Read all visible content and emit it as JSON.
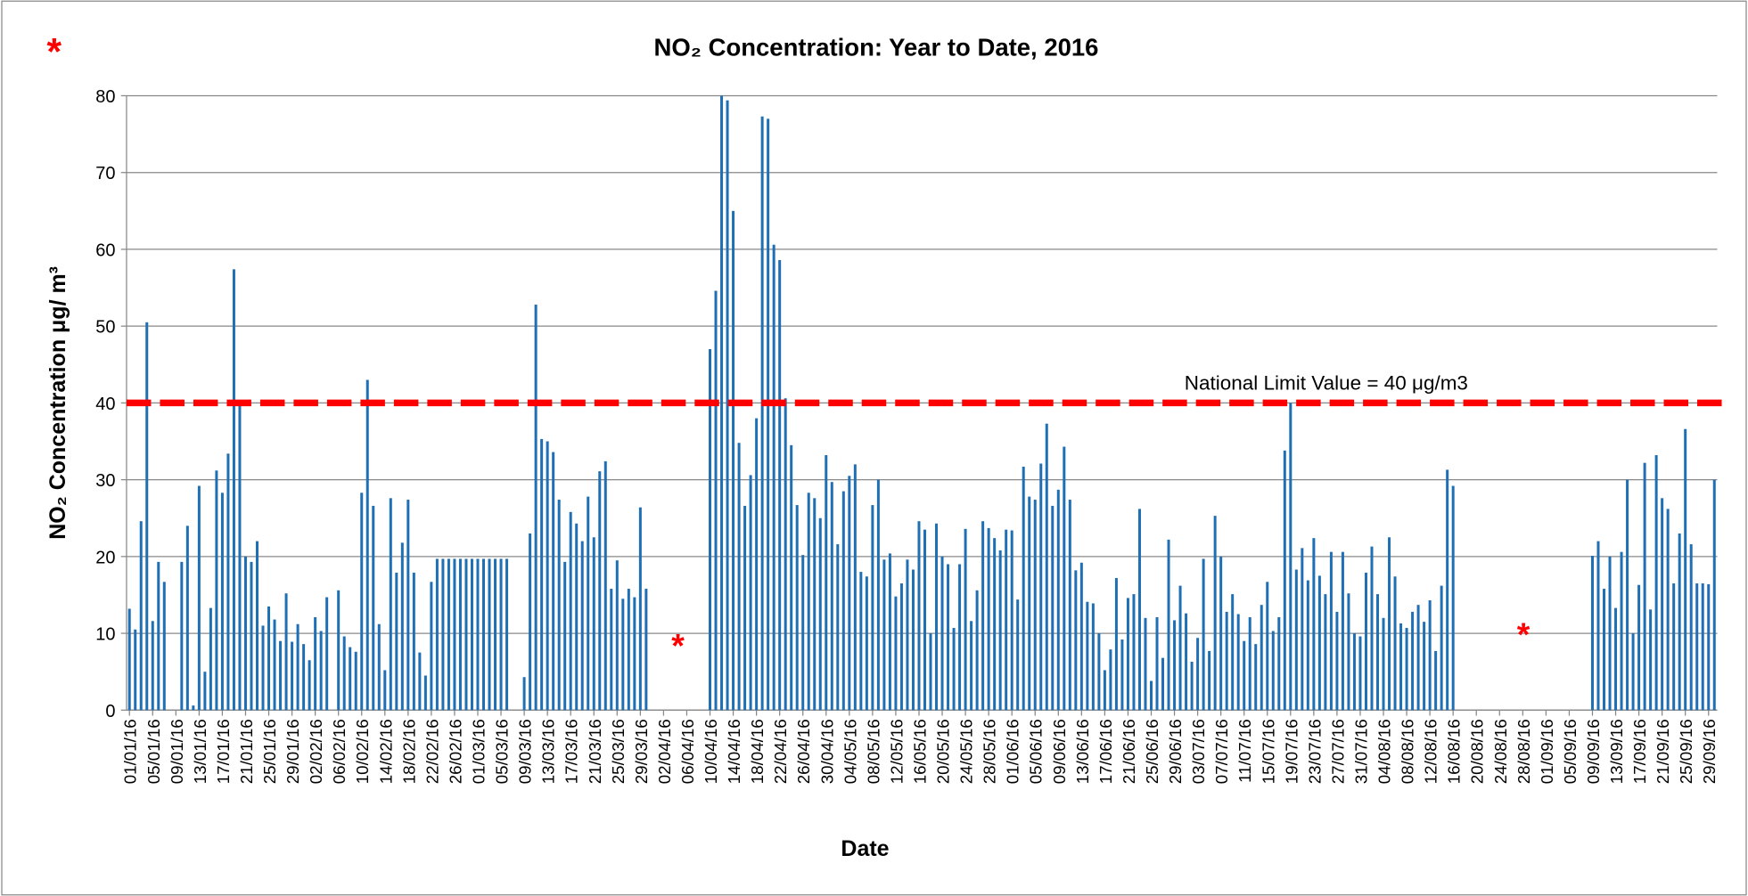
{
  "chart_data": {
    "type": "bar",
    "title": "NO₂ Concentration: Year to Date, 2016",
    "y_label": "NO₂ Concentration μg/ m³",
    "x_label": "Date",
    "color": "#1f6fb5",
    "grid": true,
    "ylim": [
      0,
      80
    ],
    "yticks": [
      0,
      10,
      20,
      30,
      40,
      50,
      60,
      70,
      80
    ],
    "reference_line": {
      "value": 40,
      "label": "National Limit Value = 40 μg/m3",
      "color": "#ff0000"
    },
    "annotations": [
      "*",
      "*",
      "*"
    ],
    "categories": [
      "01/01/16",
      null,
      null,
      null,
      "05/01/16",
      null,
      null,
      null,
      "09/01/16",
      null,
      null,
      null,
      "13/01/16",
      null,
      null,
      null,
      "17/01/16",
      null,
      null,
      null,
      "21/01/16",
      null,
      null,
      null,
      "25/01/16",
      null,
      null,
      null,
      "29/01/16",
      null,
      null,
      null,
      "02/02/16",
      null,
      null,
      null,
      "06/02/16",
      null,
      null,
      null,
      "10/02/16",
      null,
      null,
      null,
      "14/02/16",
      null,
      null,
      null,
      "18/02/16",
      null,
      null,
      null,
      "22/02/16",
      null,
      null,
      null,
      "26/02/16",
      null,
      null,
      null,
      "01/03/16",
      null,
      null,
      null,
      "05/03/16",
      null,
      null,
      null,
      "09/03/16",
      null,
      null,
      null,
      "13/03/16",
      null,
      null,
      null,
      "17/03/16",
      null,
      null,
      null,
      "21/03/16",
      null,
      null,
      null,
      "25/03/16",
      null,
      null,
      null,
      "29/03/16",
      null,
      null,
      null,
      "02/04/16",
      null,
      null,
      null,
      "06/04/16",
      null,
      null,
      null,
      "10/04/16",
      null,
      null,
      null,
      "14/04/16",
      null,
      null,
      null,
      "18/04/16",
      null,
      null,
      null,
      "22/04/16",
      null,
      null,
      null,
      "26/04/16",
      null,
      null,
      null,
      "30/04/16",
      null,
      null,
      null,
      "04/05/16",
      null,
      null,
      null,
      "08/05/16",
      null,
      null,
      null,
      "12/05/16",
      null,
      null,
      null,
      "16/05/16",
      null,
      null,
      null,
      "20/05/16",
      null,
      null,
      null,
      "24/05/16",
      null,
      null,
      null,
      "28/05/16",
      null,
      null,
      null,
      "01/06/16",
      null,
      null,
      null,
      "05/06/16",
      null,
      null,
      null,
      "09/06/16",
      null,
      null,
      null,
      "13/06/16",
      null,
      null,
      null,
      "17/06/16",
      null,
      null,
      null,
      "21/06/16",
      null,
      null,
      null,
      "25/06/16",
      null,
      null,
      null,
      "29/06/16",
      null,
      null,
      null,
      "03/07/16",
      null,
      null,
      null,
      "07/07/16",
      null,
      null,
      null,
      "11/07/16",
      null,
      null,
      null,
      "15/07/16",
      null,
      null,
      null,
      "19/07/16",
      null,
      null,
      null,
      "23/07/16",
      null,
      null,
      null,
      "27/07/16",
      null,
      null,
      null,
      "31/07/16",
      null,
      null,
      null,
      "04/08/16",
      null,
      null,
      null,
      "08/08/16",
      null,
      null,
      null,
      "12/08/16",
      null,
      null,
      null,
      "16/08/16",
      null,
      null,
      null,
      "20/08/16",
      null,
      null,
      null,
      "24/08/16",
      null,
      null,
      null,
      "28/08/16",
      null,
      null,
      null,
      "01/09/16",
      null,
      null,
      null,
      "05/09/16",
      null,
      null,
      null,
      "09/09/16",
      null,
      null,
      null,
      "13/09/16",
      null,
      null,
      null,
      "17/09/16",
      null,
      null,
      null,
      "21/09/16",
      null,
      null,
      null,
      "25/09/16",
      null,
      null,
      null,
      "29/09/16",
      null
    ],
    "values": [
      13.2,
      10.5,
      24.6,
      50.5,
      11.6,
      19.3,
      16.7,
      null,
      null,
      19.3,
      24,
      0.6,
      29.2,
      5,
      13.3,
      31.2,
      28.3,
      33.4,
      57.4,
      40.3,
      20,
      19.3,
      22,
      11,
      13.5,
      11.8,
      9,
      15.2,
      8.9,
      11.2,
      8.6,
      6.5,
      12.1,
      10.3,
      14.7,
      null,
      15.6,
      9.6,
      8.2,
      7.6,
      28.3,
      43,
      26.6,
      11.2,
      5.2,
      27.6,
      17.9,
      21.8,
      27.4,
      17.9,
      7.5,
      4.5,
      16.7,
      19.7,
      19.7,
      19.7,
      19.7,
      19.7,
      19.7,
      19.7,
      19.7,
      19.7,
      19.7,
      19.7,
      19.7,
      19.7,
      null,
      null,
      4.3,
      23,
      52.8,
      35.3,
      35,
      33.6,
      27.4,
      19.3,
      25.8,
      24.3,
      22,
      27.8,
      22.5,
      31.1,
      32.4,
      15.8,
      19.5,
      14.5,
      15.8,
      14.7,
      26.4,
      15.8,
      null,
      null,
      null,
      null,
      null,
      null,
      null,
      null,
      null,
      null,
      47,
      54.6,
      80,
      79.4,
      65,
      34.8,
      26.6,
      30.6,
      38,
      77.3,
      77,
      60.6,
      58.6,
      40.6,
      34.5,
      26.7,
      20.2,
      28.3,
      27.6,
      25,
      33.2,
      29.7,
      21.6,
      28.5,
      30.5,
      32,
      18,
      17.4,
      26.7,
      30,
      19.6,
      20.4,
      14.8,
      16.5,
      19.6,
      18.3,
      24.6,
      23.5,
      10,
      24.3,
      20,
      19,
      10.7,
      19,
      23.6,
      11.6,
      15.6,
      24.6,
      23.7,
      22.4,
      20.8,
      23.5,
      23.4,
      14.4,
      31.7,
      27.8,
      27.4,
      32.1,
      37.3,
      26.6,
      28.7,
      34.3,
      27.4,
      18.2,
      19.2,
      14.1,
      13.9,
      10,
      5.2,
      7.9,
      17.2,
      9.2,
      14.6,
      15.1,
      26.2,
      12,
      3.8,
      12.1,
      6.8,
      22.2,
      11.7,
      16.2,
      12.6,
      6.3,
      9.4,
      19.7,
      7.7,
      25.3,
      20,
      12.8,
      15.1,
      12.5,
      9,
      12.1,
      8.6,
      13.7,
      16.7,
      10.3,
      12.1,
      33.8,
      40,
      18.3,
      21.1,
      16.9,
      22.4,
      17.5,
      15.1,
      20.6,
      12.8,
      20.6,
      15.2,
      10,
      9.6,
      17.9,
      21.3,
      15.1,
      12,
      22.5,
      17.4,
      11.3,
      10.7,
      12.8,
      13.7,
      11.5,
      14.3,
      7.7,
      16.2,
      31.3,
      29.2,
      null,
      null,
      null,
      null,
      null,
      null,
      null,
      null,
      null,
      null,
      null,
      null,
      null,
      null,
      null,
      null,
      null,
      null,
      null,
      null,
      null,
      null,
      null,
      20.1,
      22,
      15.8,
      20,
      13.3,
      20.6,
      30,
      10,
      16.3,
      32.2,
      13.1,
      33.2,
      27.6,
      26.2,
      16.5,
      23,
      36.6,
      21.6,
      16.5,
      16.5,
      16.4,
      30
    ]
  }
}
